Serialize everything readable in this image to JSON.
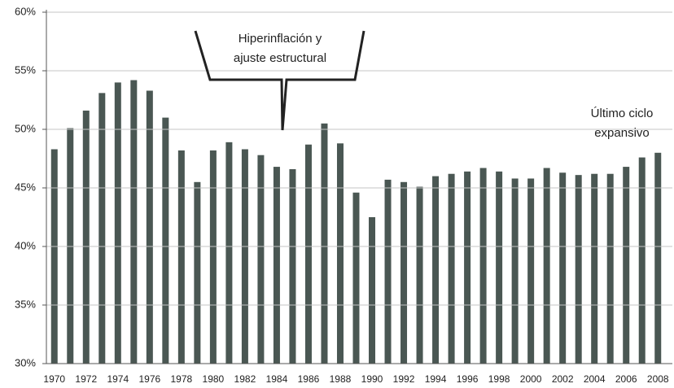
{
  "chart_data": {
    "type": "bar",
    "categories": [
      "1970",
      null,
      "1972",
      null,
      "1974",
      null,
      "1976",
      null,
      "1978",
      null,
      "1980",
      null,
      "1982",
      null,
      "1984",
      null,
      "1986",
      null,
      "1988",
      null,
      "1990",
      null,
      "1992",
      null,
      "1994",
      null,
      "1996",
      null,
      "1998",
      null,
      "2000",
      null,
      "2002",
      null,
      "2004",
      null,
      "2006",
      null,
      "2008"
    ],
    "values": [
      48.3,
      50.1,
      51.6,
      53.1,
      54.0,
      54.2,
      53.3,
      51.0,
      48.2,
      45.5,
      48.2,
      48.9,
      48.3,
      47.8,
      46.8,
      46.6,
      48.7,
      50.5,
      48.8,
      44.6,
      42.5,
      45.7,
      45.5,
      45.1,
      46.0,
      46.2,
      46.4,
      46.7,
      46.4,
      45.8,
      45.8,
      46.7,
      46.3,
      46.1,
      46.2,
      46.2,
      46.8,
      47.6,
      48.0
    ],
    "color": "#4a5753",
    "ylim": [
      30,
      60
    ],
    "yticks": [
      {
        "value": 30,
        "label": "30%"
      },
      {
        "value": 35,
        "label": "35%"
      },
      {
        "value": 40,
        "label": "40%"
      },
      {
        "value": 45,
        "label": "45%"
      },
      {
        "value": 50,
        "label": "50%"
      },
      {
        "value": 55,
        "label": "55%"
      },
      {
        "value": 60,
        "label": "60%"
      }
    ],
    "grid": true,
    "annotations": [
      [
        "Hiperinflación y",
        "ajuste estructural"
      ],
      [
        "Último ciclo",
        "expansivo"
      ]
    ]
  }
}
